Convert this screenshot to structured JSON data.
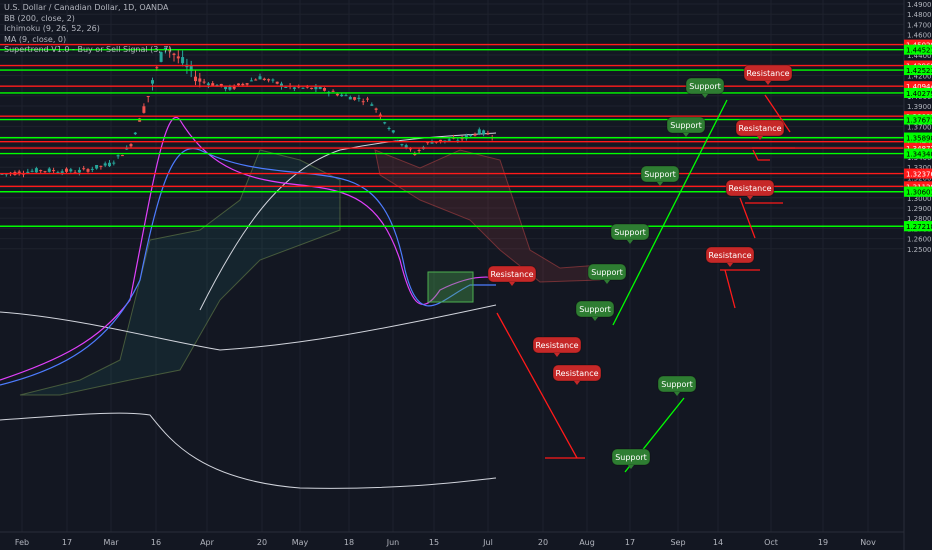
{
  "legend": [
    "U.S. Dollar / Canadian Dollar, 1D, OANDA",
    "BB (200, close, 2)",
    "Ichimoku (9, 26, 52, 26)",
    "MA (9, close, 0)",
    "Supertrend V1.0 - Buy or Sell Signal (3, 7)"
  ],
  "colors": {
    "background": "#131722",
    "support": "#00ff00",
    "resistance": "#ff1a1a",
    "support_bubble": "#2e7d32",
    "resistance_bubble": "#c62828",
    "bullish_candle": "#26a69a",
    "bearish_candle": "#ef5350"
  },
  "chart_data": {
    "type": "candlestick",
    "ylim": [
      1.245,
      1.492
    ],
    "x_ticks": [
      "Feb",
      "17",
      "Mar",
      "16",
      "Apr",
      "20",
      "May",
      "18",
      "Jun",
      "15",
      "Jul",
      "20",
      "Aug",
      "17",
      "Sep",
      "14",
      "Oct",
      "19",
      "Nov"
    ],
    "y_ticks": [
      "1.49000",
      "1.48000",
      "1.47000",
      "1.46000",
      "1.45000",
      "1.44000",
      "1.43000",
      "1.42000",
      "1.41000",
      "1.40000",
      "1.39000",
      "1.38000",
      "1.37000",
      "1.36000",
      "1.35000",
      "1.34000",
      "1.33000",
      "1.32000",
      "1.31000",
      "1.30000",
      "1.29000",
      "1.28000",
      "1.27000",
      "1.26000",
      "1.25000"
    ],
    "resistance_levels": [
      1.4502,
      1.42968,
      1.40944,
      1.38005,
      1.35497,
      1.34872,
      1.32376,
      1.31128
    ],
    "resistance_labels": [
      "1.45020",
      "1.42968",
      "1.40944",
      "1.38005",
      "1.35497",
      "1.34872",
      "1.32376",
      "1.31128"
    ],
    "support_levels": [
      1.44521,
      1.42523,
      1.40279,
      1.37671,
      1.35898,
      1.35898,
      1.3434,
      1.30601,
      1.30601,
      1.27219,
      1.27218
    ],
    "support_labels": [
      "1.44521",
      "1.42523",
      "1.40279",
      "1.37671",
      "1.35898",
      "1.35898",
      "1.34340",
      "1.30601",
      "1.30601",
      "1.27219",
      "1.27218"
    ],
    "annotations": [
      {
        "text": "Support",
        "kind": "support"
      },
      {
        "text": "Resistance",
        "kind": "resistance"
      },
      {
        "text": "Support",
        "kind": "support"
      },
      {
        "text": "Resistance",
        "kind": "resistance"
      },
      {
        "text": "Support",
        "kind": "support"
      },
      {
        "text": "Resistance",
        "kind": "resistance"
      },
      {
        "text": "Support",
        "kind": "support"
      },
      {
        "text": "Resistance",
        "kind": "resistance"
      },
      {
        "text": "Support",
        "kind": "support"
      },
      {
        "text": "Resistance",
        "kind": "resistance"
      },
      {
        "text": "Support",
        "kind": "support"
      },
      {
        "text": "Resistance",
        "kind": "resistance"
      },
      {
        "text": "Resistance",
        "kind": "resistance"
      },
      {
        "text": "Support",
        "kind": "support"
      },
      {
        "text": "Support",
        "kind": "support"
      }
    ]
  }
}
